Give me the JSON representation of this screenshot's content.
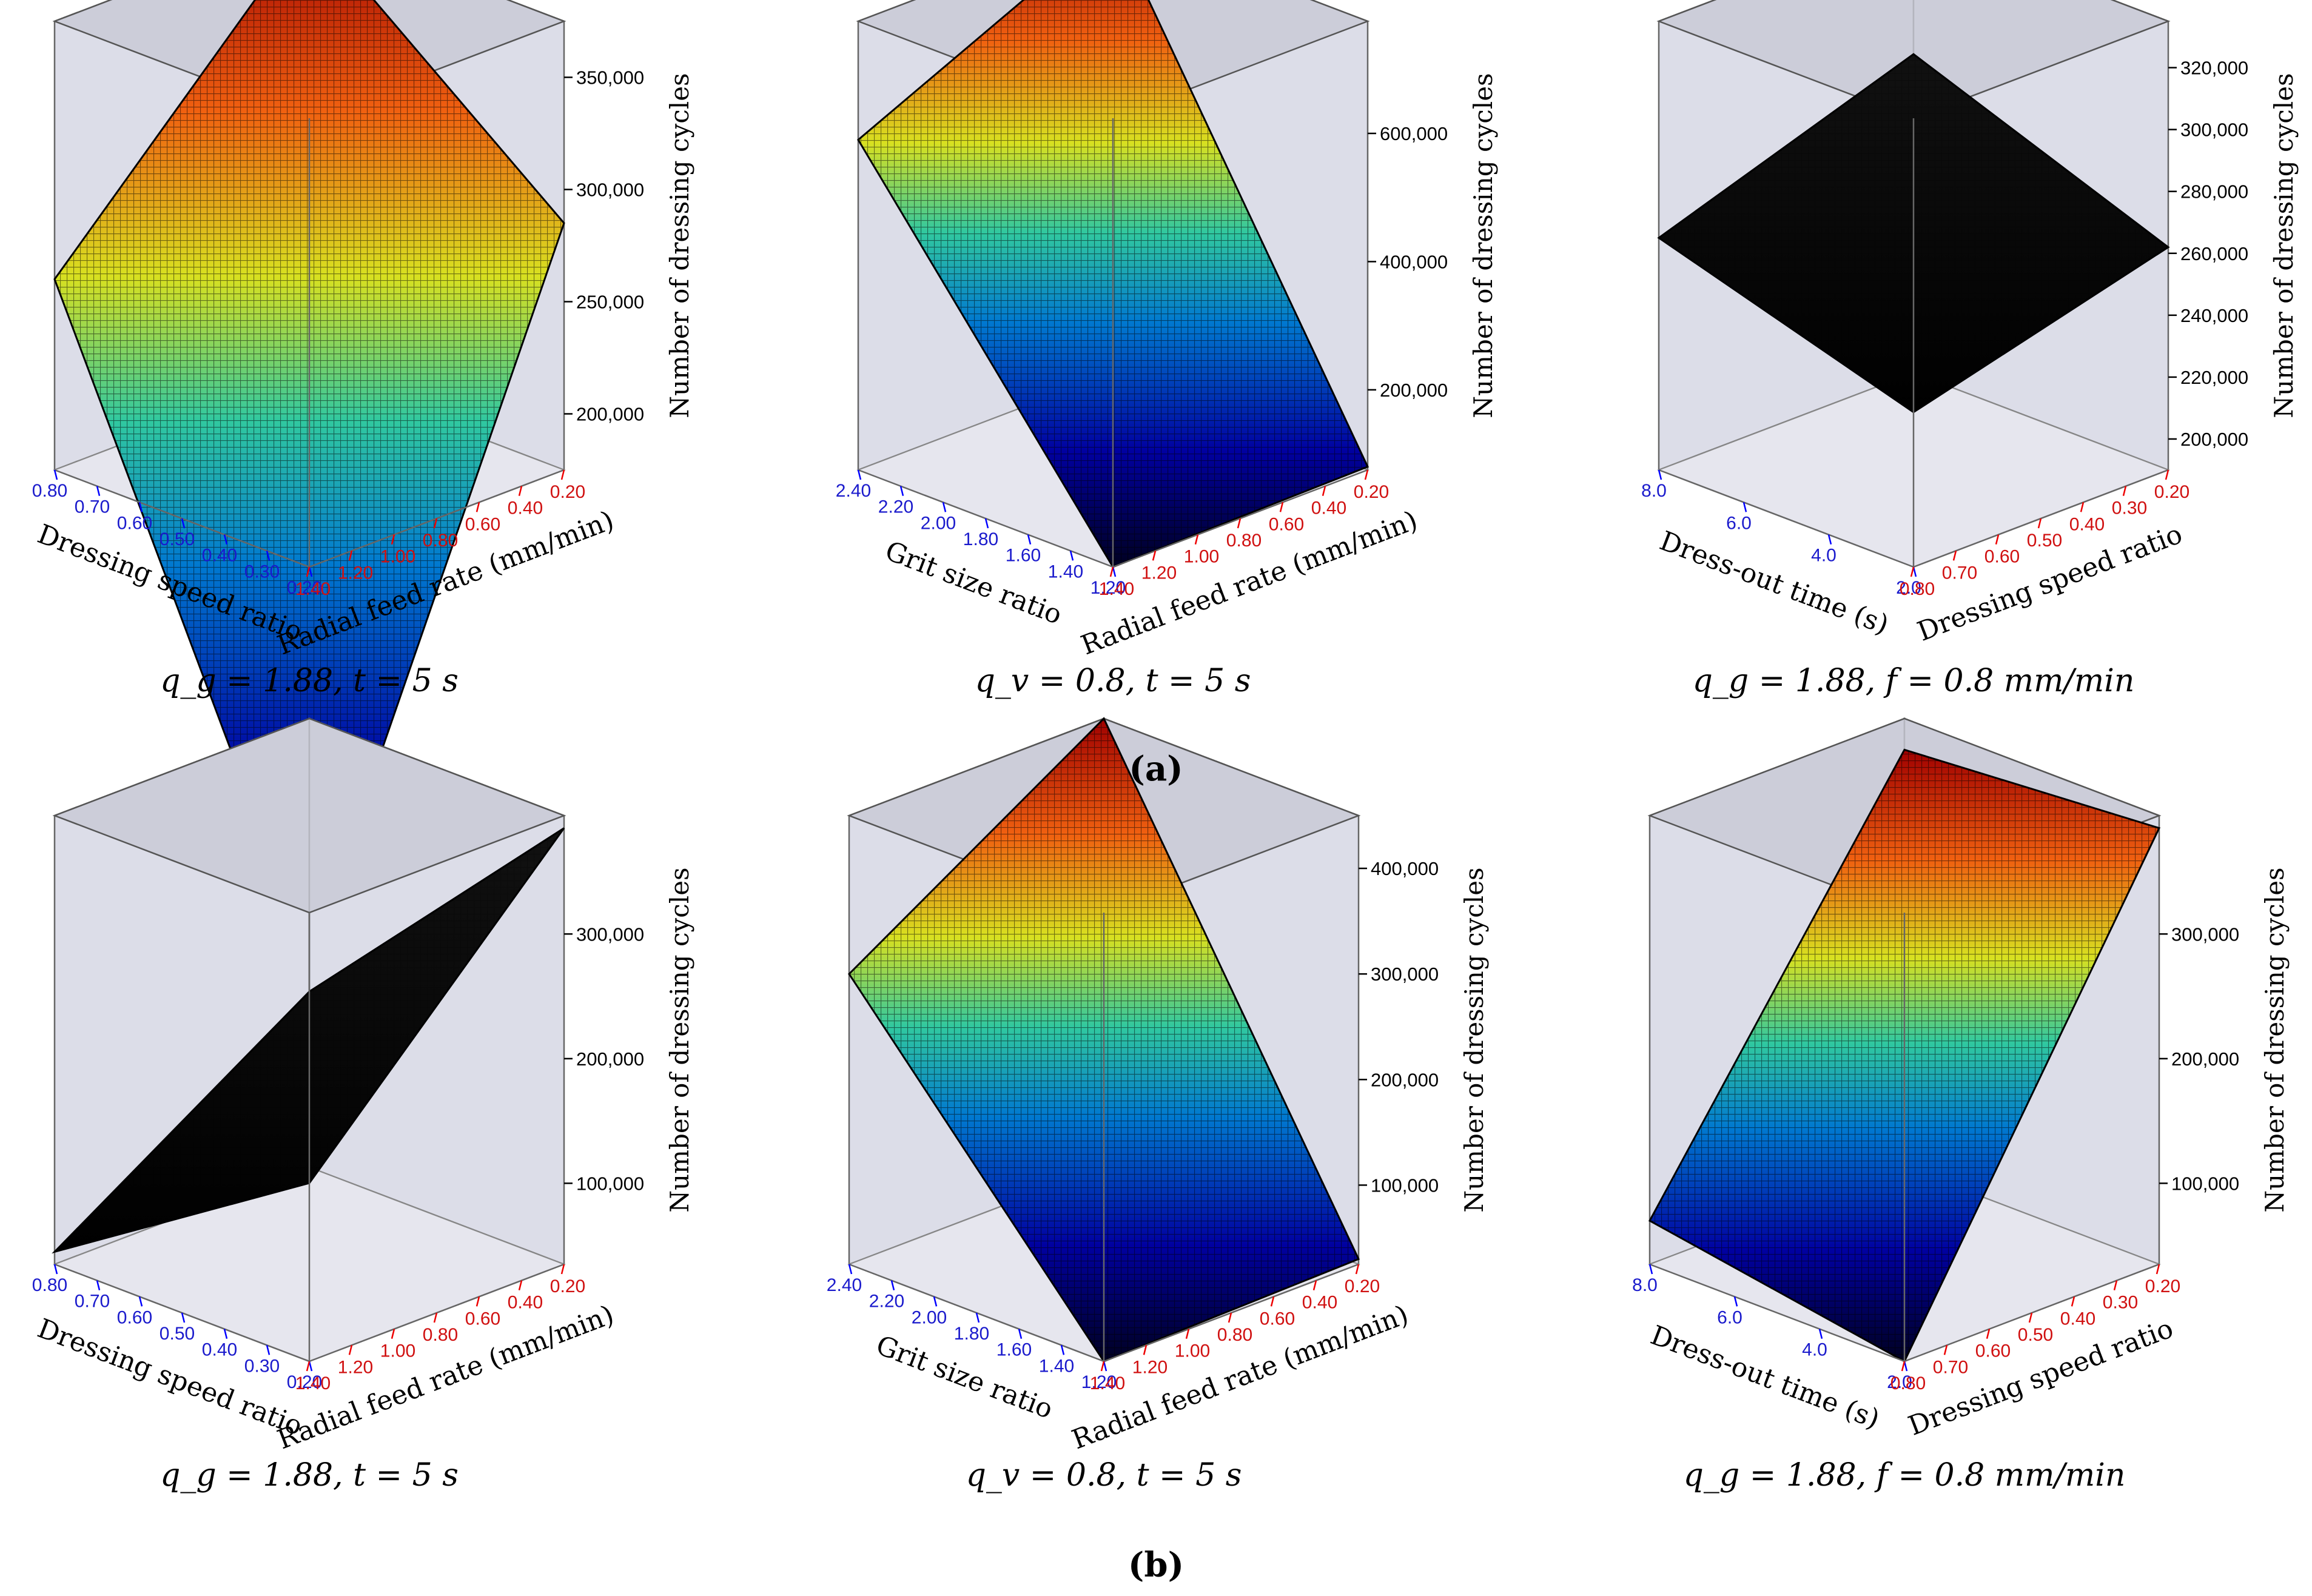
{
  "figure": {
    "panel_labels": [
      "(a)",
      "(b)"
    ]
  },
  "chart_data": [
    {
      "type": "surface3d",
      "row": "a",
      "position": "left",
      "zlabel": "Number of dressing cycles",
      "xlabel": "Dressing speed ratio",
      "xticks": [
        "0.80",
        "0.70",
        "0.60",
        "0.50",
        "0.40",
        "0.30",
        "0.20"
      ],
      "ylabel": "Radial feed rate (mm/min)",
      "yticks": [
        "1.40",
        "1.20",
        "1.00",
        "0.80",
        "0.60",
        "0.40",
        "0.20"
      ],
      "zticks": [
        "200,000",
        "250,000",
        "300,000",
        "350,000"
      ],
      "zlim": [
        175000,
        375000
      ],
      "corners": {
        "front": 0,
        "left": 260000,
        "right": 285000,
        "back": 375000
      },
      "colored": true,
      "caption": "q_g = 1.88,  t = 5 s"
    },
    {
      "type": "surface3d",
      "row": "a",
      "position": "middle",
      "zlabel": "Number of dressing cycles",
      "xlabel": "Grit size ratio",
      "xticks": [
        "2.40",
        "2.20",
        "2.00",
        "1.80",
        "1.60",
        "1.40",
        "1.20"
      ],
      "ylabel": "Radial feed rate (mm/min)",
      "yticks": [
        "1.40",
        "1.20",
        "1.00",
        "0.80",
        "0.60",
        "0.40",
        "0.20"
      ],
      "zticks": [
        "200,000",
        "400,000",
        "600,000"
      ],
      "zlim": [
        75000,
        775000
      ],
      "corners": {
        "front": 75000,
        "left": 590000,
        "right": 80000,
        "back": 775000
      },
      "colored": true,
      "caption": "q_v = 0.8,  t = 5 s"
    },
    {
      "type": "surface3d",
      "row": "a",
      "position": "right",
      "zlabel": "Number of dressing cycles",
      "xlabel": "Dress-out time (s)",
      "xticks": [
        "8.0",
        "6.0",
        "4.0",
        "2.0"
      ],
      "ylabel": "Dressing speed ratio",
      "yticks": [
        "0.80",
        "0.70",
        "0.60",
        "0.50",
        "0.40",
        "0.30",
        "0.20"
      ],
      "zticks": [
        "200,000",
        "220,000",
        "240,000",
        "260,000",
        "280,000",
        "300,000",
        "320,000"
      ],
      "zlim": [
        190000,
        335000
      ],
      "corners": {
        "front": 240000,
        "left": 265000,
        "right": 262000,
        "back": 293000
      },
      "colored": false,
      "caption": "q_g = 1.88, f = 0.8 mm/min"
    },
    {
      "type": "surface3d",
      "row": "b",
      "position": "left",
      "zlabel": "Number of dressing cycles",
      "xlabel": "Dressing speed ratio",
      "xticks": [
        "0.80",
        "0.70",
        "0.60",
        "0.50",
        "0.40",
        "0.30",
        "0.20"
      ],
      "ylabel": "Radial feed rate (mm/min)",
      "yticks": [
        "1.40",
        "1.20",
        "1.00",
        "0.80",
        "0.60",
        "0.40",
        "0.20"
      ],
      "zticks": [
        "100,000",
        "200,000",
        "300,000"
      ],
      "zlim": [
        35000,
        395000
      ],
      "corners": {
        "front": 178000,
        "left": 45000,
        "right": 385000,
        "back": 176000
      },
      "colored": false,
      "caption": "q_g = 1.88,  t = 5 s"
    },
    {
      "type": "surface3d",
      "row": "b",
      "position": "middle",
      "zlabel": "Number of dressing cycles",
      "xlabel": "Grit size ratio",
      "xticks": [
        "2.40",
        "2.20",
        "2.00",
        "1.80",
        "1.60",
        "1.40",
        "1.20"
      ],
      "ylabel": "Radial feed rate (mm/min)",
      "yticks": [
        "1.40",
        "1.20",
        "1.00",
        "0.80",
        "0.60",
        "0.40",
        "0.20"
      ],
      "zticks": [
        "100,000",
        "200,000",
        "300,000",
        "400,000"
      ],
      "zlim": [
        25000,
        450000
      ],
      "corners": {
        "front": 25000,
        "left": 300000,
        "right": 30000,
        "back": 450000
      },
      "colored": true,
      "caption": "q_v = 0.8,  t = 5 s"
    },
    {
      "type": "surface3d",
      "row": "b",
      "position": "right",
      "zlabel": "Number of dressing cycles",
      "xlabel": "Dress-out time (s)",
      "xticks": [
        "8.0",
        "6.0",
        "4.0",
        "2.0"
      ],
      "ylabel": "Dressing speed ratio",
      "yticks": [
        "0.80",
        "0.70",
        "0.60",
        "0.50",
        "0.40",
        "0.30",
        "0.20"
      ],
      "zticks": [
        "100,000",
        "200,000",
        "300,000"
      ],
      "zlim": [
        35000,
        395000
      ],
      "corners": {
        "front": 35000,
        "left": 70000,
        "right": 385000,
        "back": 370000
      },
      "colored": true,
      "caption": "q_g = 1.88, f = 0.8 mm/min"
    }
  ]
}
